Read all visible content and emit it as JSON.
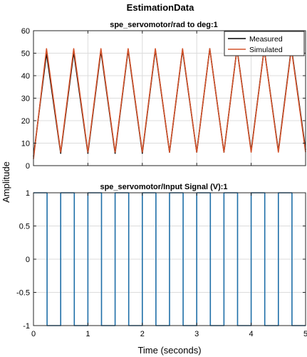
{
  "figure_title": "EstimationData",
  "chart_data": [
    {
      "type": "line",
      "title": "spe_servomotor/rad to deg:1",
      "xlabel": "Time (seconds)",
      "ylabel": "Amplitude",
      "xlim": [
        0,
        5
      ],
      "ylim": [
        0,
        60
      ],
      "xticks": [
        "0",
        "1",
        "2",
        "3",
        "4",
        "5"
      ],
      "yticks": [
        "0",
        "10",
        "20",
        "30",
        "40",
        "50",
        "60"
      ],
      "grid": true,
      "legend_position": "top-right",
      "series": [
        {
          "name": "Measured",
          "color": "#000000",
          "x": [
            0,
            0.24,
            0.5,
            0.74,
            1.0,
            1.24,
            1.5,
            1.74,
            2.0,
            2.24,
            2.5,
            2.74,
            3.0,
            3.24,
            3.5,
            3.74,
            4.0,
            4.24,
            4.5,
            4.74,
            5.0
          ],
          "y": [
            4,
            50,
            5.5,
            50.5,
            5.5,
            51,
            5.5,
            51.5,
            5.5,
            51.5,
            6,
            51.5,
            6,
            52,
            6,
            52,
            6.5,
            52,
            6.5,
            52.5,
            7
          ]
        },
        {
          "name": "Simulated",
          "color": "#d4532b",
          "x": [
            0,
            0.24,
            0.5,
            0.74,
            1.0,
            1.24,
            1.5,
            1.74,
            2.0,
            2.24,
            2.5,
            2.74,
            3.0,
            3.24,
            3.5,
            3.74,
            4.0,
            4.24,
            4.5,
            4.74,
            5.0
          ],
          "y": [
            3,
            52,
            6,
            52,
            6,
            52,
            6,
            52,
            6,
            52,
            6,
            52,
            6,
            52,
            6,
            52,
            6,
            52,
            6,
            52,
            6
          ]
        }
      ]
    },
    {
      "type": "line",
      "title": "spe_servomotor/Input Signal (V):1",
      "xlabel": "Time (seconds)",
      "ylabel": "Amplitude",
      "xlim": [
        0,
        5
      ],
      "ylim": [
        -1,
        1
      ],
      "xticks": [
        "0",
        "1",
        "2",
        "3",
        "4",
        "5"
      ],
      "yticks": [
        "-1",
        "-0.5",
        "0",
        "0.5",
        "1"
      ],
      "grid": true,
      "series": [
        {
          "name": "",
          "color": "#1f6fa8",
          "x": [
            0,
            0.25,
            0.25,
            0.5,
            0.5,
            0.75,
            0.75,
            1.0,
            1.0,
            1.25,
            1.25,
            1.5,
            1.5,
            1.75,
            1.75,
            2.0,
            2.0,
            2.25,
            2.25,
            2.5,
            2.5,
            2.75,
            2.75,
            3.0,
            3.0,
            3.25,
            3.25,
            3.5,
            3.5,
            3.75,
            3.75,
            4.0,
            4.0,
            4.25,
            4.25,
            4.5,
            4.5,
            4.75,
            4.75,
            5.0
          ],
          "y": [
            1,
            1,
            -1,
            -1,
            1,
            1,
            -1,
            -1,
            1,
            1,
            -1,
            -1,
            1,
            1,
            -1,
            -1,
            1,
            1,
            -1,
            -1,
            1,
            1,
            -1,
            -1,
            1,
            1,
            -1,
            -1,
            1,
            1,
            -1,
            -1,
            1,
            1,
            -1,
            -1,
            1,
            1,
            -1,
            -1
          ]
        }
      ]
    }
  ]
}
